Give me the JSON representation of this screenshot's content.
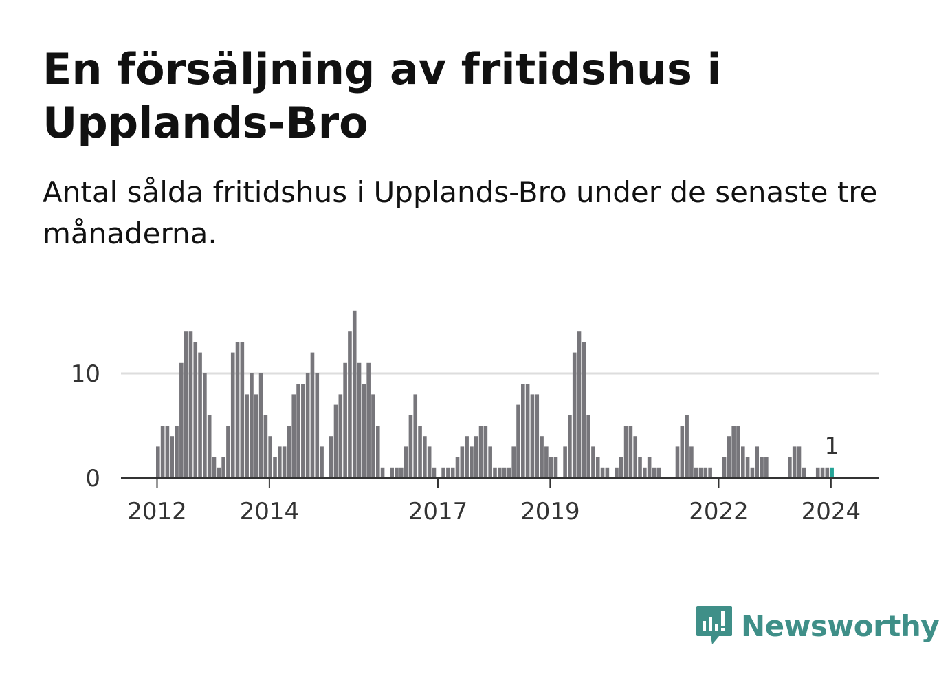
{
  "header": {
    "title": "En försäljning av fritidshus i Upplands-Bro",
    "subtitle": "Antal sålda fritidshus i Upplands-Bro under de senaste tre månaderna."
  },
  "brand": {
    "name": "Newsworthy",
    "icon": "newsworthy-logo-icon",
    "color": "#3f8f88"
  },
  "colors": {
    "bar": "#77767b",
    "highlight": "#24a396",
    "grid": "#dddddd",
    "axis": "#333333"
  },
  "chart_data": {
    "type": "bar",
    "x_start": "2012-01",
    "x_interval": "month",
    "yticks": [
      0,
      10
    ],
    "xticks": [
      "2012",
      "2014",
      "2017",
      "2019",
      "2022",
      "2024"
    ],
    "ylim": [
      0,
      16
    ],
    "values": [
      3,
      5,
      5,
      4,
      5,
      11,
      14,
      14,
      13,
      12,
      10,
      6,
      2,
      1,
      2,
      5,
      12,
      13,
      13,
      8,
      10,
      8,
      10,
      6,
      4,
      2,
      3,
      3,
      5,
      8,
      9,
      9,
      10,
      12,
      10,
      3,
      0,
      4,
      7,
      8,
      11,
      14,
      16,
      11,
      9,
      11,
      8,
      5,
      1,
      0,
      1,
      1,
      1,
      3,
      6,
      8,
      5,
      4,
      3,
      1,
      0,
      1,
      1,
      1,
      2,
      3,
      4,
      3,
      4,
      5,
      5,
      3,
      1,
      1,
      1,
      1,
      3,
      7,
      9,
      9,
      8,
      8,
      4,
      3,
      2,
      2,
      0,
      3,
      6,
      12,
      14,
      13,
      6,
      3,
      2,
      1,
      1,
      0,
      1,
      2,
      5,
      5,
      4,
      2,
      1,
      2,
      1,
      1,
      0,
      0,
      0,
      3,
      5,
      6,
      3,
      1,
      1,
      1,
      1,
      0,
      0,
      2,
      4,
      5,
      5,
      3,
      2,
      1,
      3,
      2,
      2,
      0,
      0,
      0,
      0,
      2,
      3,
      3,
      1,
      0,
      0,
      1,
      1,
      1,
      1
    ],
    "highlight_label": "1"
  }
}
